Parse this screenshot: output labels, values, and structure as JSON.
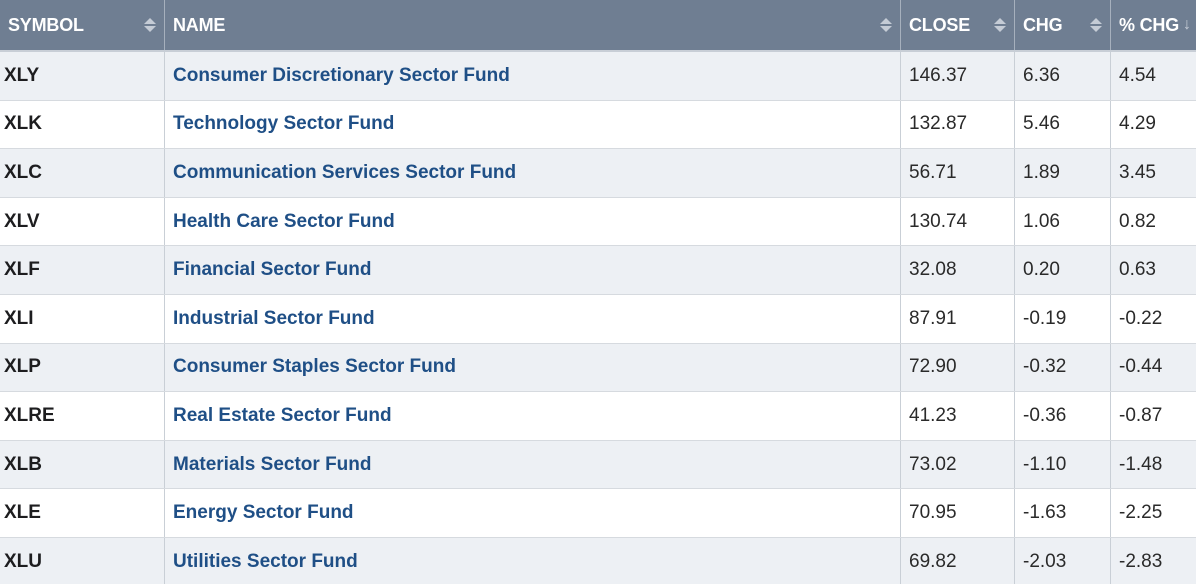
{
  "columns": {
    "symbol": "SYMBOL",
    "name": "NAME",
    "close": "CLOSE",
    "chg": "CHG",
    "pct_chg": "% CHG"
  },
  "rows": [
    {
      "symbol": "XLY",
      "name": "Consumer Discretionary Sector Fund",
      "close": "146.37",
      "chg": "6.36",
      "pct_chg": "4.54"
    },
    {
      "symbol": "XLK",
      "name": "Technology Sector Fund",
      "close": "132.87",
      "chg": "5.46",
      "pct_chg": "4.29"
    },
    {
      "symbol": "XLC",
      "name": "Communication Services Sector Fund",
      "close": "56.71",
      "chg": "1.89",
      "pct_chg": "3.45"
    },
    {
      "symbol": "XLV",
      "name": "Health Care Sector Fund",
      "close": "130.74",
      "chg": "1.06",
      "pct_chg": "0.82"
    },
    {
      "symbol": "XLF",
      "name": "Financial Sector Fund",
      "close": "32.08",
      "chg": "0.20",
      "pct_chg": "0.63"
    },
    {
      "symbol": "XLI",
      "name": "Industrial Sector Fund",
      "close": "87.91",
      "chg": "-0.19",
      "pct_chg": "-0.22"
    },
    {
      "symbol": "XLP",
      "name": "Consumer Staples Sector Fund",
      "close": "72.90",
      "chg": "-0.32",
      "pct_chg": "-0.44"
    },
    {
      "symbol": "XLRE",
      "name": "Real Estate Sector Fund",
      "close": "41.23",
      "chg": "-0.36",
      "pct_chg": "-0.87"
    },
    {
      "symbol": "XLB",
      "name": "Materials Sector Fund",
      "close": "73.02",
      "chg": "-1.10",
      "pct_chg": "-1.48"
    },
    {
      "symbol": "XLE",
      "name": "Energy Sector Fund",
      "close": "70.95",
      "chg": "-1.63",
      "pct_chg": "-2.25"
    },
    {
      "symbol": "XLU",
      "name": "Utilities Sector Fund",
      "close": "69.82",
      "chg": "-2.03",
      "pct_chg": "-2.83"
    }
  ],
  "colors": {
    "header_bg": "#6f7e92",
    "link": "#1f4f86",
    "row_alt": "#edf0f4"
  }
}
